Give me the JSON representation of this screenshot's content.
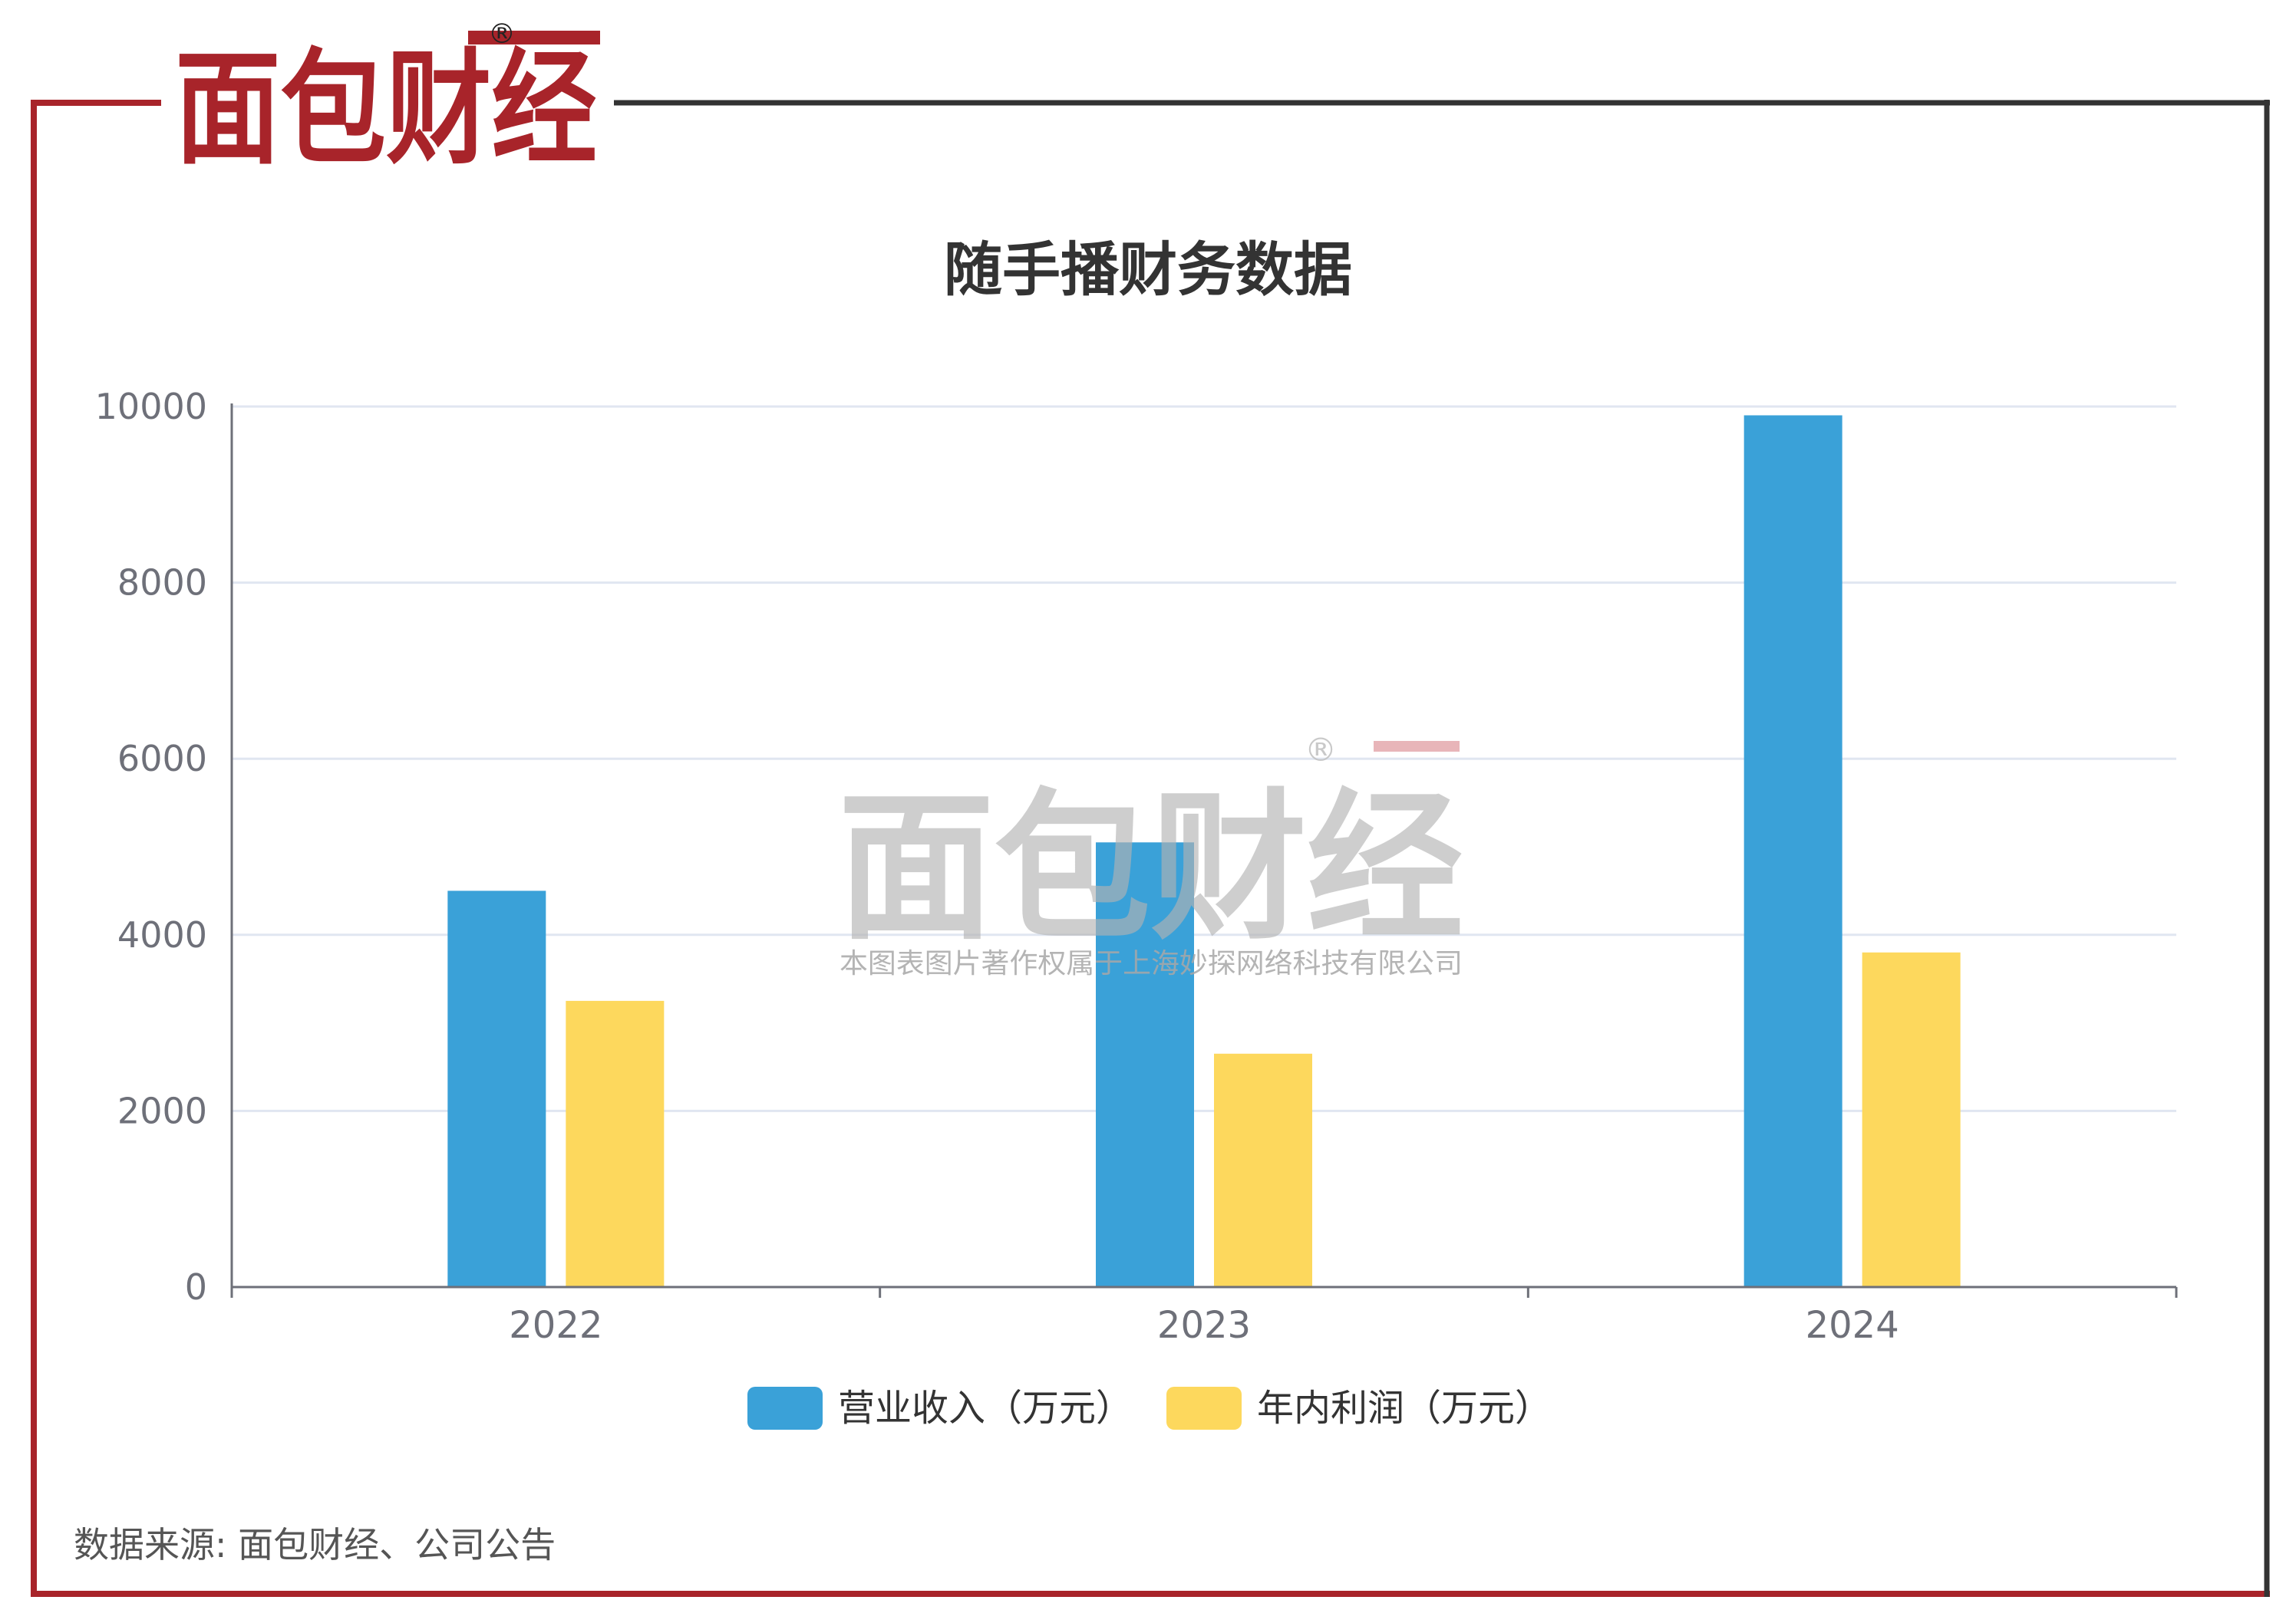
{
  "brand": {
    "logo_text": "面包财经",
    "registered_mark": "®",
    "accent_color": "#a8242a",
    "logo_dark": "#1e1e1e"
  },
  "watermark": {
    "logo_text": "面包财经",
    "registered_mark": "®",
    "subtitle": "本图表图片著作权属于上海妙探网络科技有限公司"
  },
  "source_note": "数据来源: 面包财经、公司公告",
  "chart_data": {
    "type": "bar",
    "title": "随手播财务数据",
    "categories": [
      "2022",
      "2023",
      "2024"
    ],
    "series": [
      {
        "name": "营业收入（万元）",
        "color": "#3aa1d8",
        "values": [
          4500,
          5050,
          9900
        ]
      },
      {
        "name": "年内利润（万元）",
        "color": "#fdd85d",
        "values": [
          3250,
          2650,
          3800
        ]
      }
    ],
    "ylim": [
      0,
      10000
    ],
    "yticks": [
      "0",
      "2000",
      "4000",
      "6000",
      "8000",
      "10000"
    ],
    "grid": true,
    "legend_position": "bottom"
  }
}
